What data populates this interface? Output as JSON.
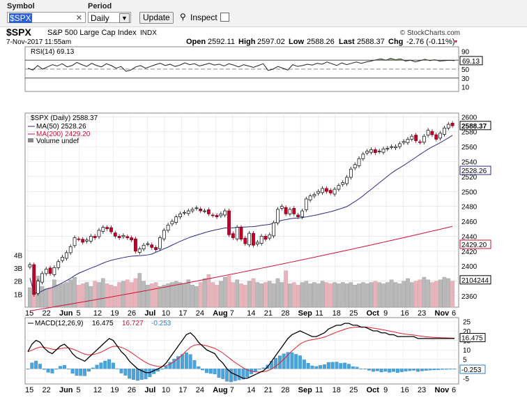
{
  "toolbar": {
    "symbol_label": "Symbol",
    "symbol_value": "$SPX",
    "clear_icon": "close-icon",
    "period_label": "Period",
    "period_value": "Daily",
    "update_label": "Update",
    "inspect_label": "Inspect"
  },
  "header": {
    "ticker": "$SPX",
    "name": "S&P 500 Large Cap Index",
    "exchange": "INDX",
    "copyright": "© StockCharts.com",
    "datetime": "7-Nov-2017 11:55am",
    "open_label": "Open",
    "open": "2592.11",
    "high_label": "High",
    "high": "2597.02",
    "low_label": "Low",
    "low": "2588.26",
    "last_label": "Last",
    "last": "2588.37",
    "chg_label": "Chg",
    "chg": "-2.76 (-0.11%)"
  },
  "chart_data": [
    {
      "type": "line",
      "panel": "rsi",
      "legend": "RSI(14) 69.13",
      "last_value_label": "69.13",
      "ylim": [
        0,
        100
      ],
      "yticks": [
        90,
        70,
        50,
        30,
        10
      ],
      "reference_lines": [
        70,
        50,
        30
      ],
      "values": [
        52,
        48,
        58,
        50,
        55,
        60,
        57,
        62,
        55,
        58,
        65,
        60,
        56,
        63,
        58,
        55,
        62,
        58,
        52,
        56,
        45,
        48,
        55,
        58,
        52,
        56,
        60,
        63,
        58,
        61,
        56,
        59,
        64,
        60,
        62,
        57,
        60,
        63,
        59,
        61,
        57,
        62,
        59,
        55,
        60,
        57,
        54,
        58,
        62,
        47,
        50,
        56,
        52,
        48,
        60,
        56,
        58,
        61,
        59,
        63,
        61,
        66,
        62,
        58,
        64,
        60,
        63,
        66,
        63,
        66,
        68,
        71,
        73,
        70,
        74,
        71,
        73,
        68,
        70,
        66,
        69,
        72,
        69,
        71,
        68,
        69,
        70,
        69
      ]
    },
    {
      "type": "line",
      "panel": "price",
      "title": "$SPX (Daily) 2588.37",
      "series": [
        {
          "name": "MA(50) 2528.26",
          "color": "#2a2a8a"
        },
        {
          "name": "MA(200) 2429.20",
          "color": "#cc1133"
        },
        {
          "name": "Volume undef",
          "color": "#888888"
        }
      ],
      "x_labels": [
        "15",
        "22",
        "Jun",
        "5",
        "12",
        "19",
        "26",
        "Jul",
        "10",
        "17",
        "24",
        "Aug",
        "7",
        "14",
        "21",
        "28",
        "Sep",
        "11",
        "18",
        "25",
        "Oct",
        "9",
        "16",
        "23",
        "Nov",
        "6"
      ],
      "yticks": [
        2600,
        2580,
        2560,
        2540,
        2520,
        2500,
        2480,
        2460,
        2440,
        2420,
        2400,
        2380,
        2360
      ],
      "ylim": [
        2345,
        2605
      ],
      "last_price_label": "2588.37",
      "ma50_label": "2528.26",
      "ma200_label": "2429.20",
      "volume_label": "2104244",
      "volume_ticks": [
        "4B",
        "3B",
        "2B",
        "1B"
      ],
      "close": [
        2402,
        2362,
        2380,
        2390,
        2396,
        2390,
        2398,
        2406,
        2412,
        2418,
        2426,
        2438,
        2436,
        2432,
        2435,
        2440,
        2438,
        2448,
        2452,
        2450,
        2446,
        2440,
        2438,
        2441,
        2438,
        2435,
        2420,
        2423,
        2428,
        2430,
        2425,
        2422,
        2438,
        2448,
        2455,
        2460,
        2466,
        2470,
        2472,
        2474,
        2476,
        2478,
        2474,
        2474,
        2470,
        2468,
        2466,
        2470,
        2474,
        2442,
        2438,
        2452,
        2436,
        2430,
        2444,
        2428,
        2432,
        2440,
        2436,
        2442,
        2458,
        2476,
        2480,
        2470,
        2476,
        2470,
        2466,
        2474,
        2490,
        2494,
        2496,
        2500,
        2504,
        2500,
        2498,
        2503,
        2508,
        2512,
        2519,
        2530,
        2536,
        2544,
        2550,
        2554,
        2556,
        2552,
        2554,
        2557,
        2558,
        2560,
        2560,
        2564,
        2567,
        2570,
        2574,
        2568,
        2566,
        2574,
        2582,
        2576,
        2570,
        2578,
        2585,
        2590,
        2588
      ],
      "volume_billion": [
        1.5,
        1.9,
        2.4,
        1.6,
        1.4,
        1.5,
        2.1,
        1.7,
        1.8,
        1.9,
        2.1,
        2.3,
        1.7,
        1.8,
        1.9,
        1.6,
        2.0,
        1.9,
        2.2,
        1.8,
        1.7,
        1.6,
        1.9,
        2.0,
        2.1,
        1.9,
        2.2,
        2.6,
        2.0,
        1.7,
        1.8,
        1.9,
        1.6,
        1.7,
        1.8,
        1.9,
        2.0,
        1.9,
        1.8,
        2.1,
        1.7,
        1.6,
        1.9,
        2.2,
        2.5,
        1.9,
        1.7,
        2.0,
        2.3,
        2.4,
        1.9,
        2.1,
        1.8,
        1.7,
        2.0,
        2.2,
        1.9,
        1.8,
        1.9,
        2.0,
        1.8,
        2.2,
        1.9,
        2.8,
        1.8,
        1.9,
        1.7,
        1.9,
        2.0,
        1.8,
        1.9,
        1.8,
        2.0,
        1.9,
        1.8,
        1.9,
        1.8,
        1.9,
        1.8,
        1.9,
        1.7,
        1.8,
        1.9,
        1.8,
        1.9,
        2.0,
        1.9,
        1.8,
        1.9,
        2.1,
        1.9,
        1.8,
        2.0,
        2.2,
        1.9,
        2.0,
        2.1,
        2.3,
        2.1,
        1.9,
        2.0,
        2.1,
        2.3,
        2.2,
        2.0
      ]
    },
    {
      "type": "line",
      "panel": "macd",
      "legend_name": "MACD(12,26,9)",
      "macd_value": "16.475",
      "signal_value": "16.727",
      "hist_value": "-0.253",
      "macd_label": "16.475",
      "hist_label": "-0.253",
      "yticks": [
        25,
        20,
        15,
        10,
        5,
        0,
        -5
      ],
      "ylim": [
        -8,
        27
      ],
      "x_labels": [
        "15",
        "22",
        "Jun",
        "5",
        "12",
        "19",
        "26",
        "Jul",
        "10",
        "17",
        "24",
        "Aug",
        "7",
        "14",
        "21",
        "28",
        "Sep",
        "11",
        "18",
        "25",
        "Oct",
        "9",
        "16",
        "23",
        "Nov",
        "6"
      ],
      "macd": [
        9,
        13,
        15,
        14,
        11,
        9,
        8,
        10,
        12,
        13,
        11,
        8,
        6,
        5,
        4,
        6,
        8,
        10,
        12,
        14,
        16,
        15,
        12,
        9,
        7,
        4,
        2,
        0,
        -1,
        -2,
        -2,
        -1,
        0,
        1,
        3,
        6,
        9,
        12,
        15,
        18,
        19,
        17,
        14,
        12,
        10,
        9,
        8,
        5,
        3,
        0,
        -2,
        -3,
        -4,
        -5,
        -5,
        -4,
        -3,
        -2,
        -1,
        1,
        4,
        7,
        10,
        13,
        16,
        18,
        19,
        20,
        19,
        18,
        17,
        17,
        18,
        19,
        21,
        22,
        23,
        23,
        24,
        24,
        23,
        23,
        22,
        22,
        21,
        20,
        20,
        19,
        19,
        18,
        18,
        17,
        17,
        17,
        17,
        17,
        16,
        16,
        16,
        16,
        16,
        16,
        16,
        16,
        16,
        16
      ]
    }
  ]
}
